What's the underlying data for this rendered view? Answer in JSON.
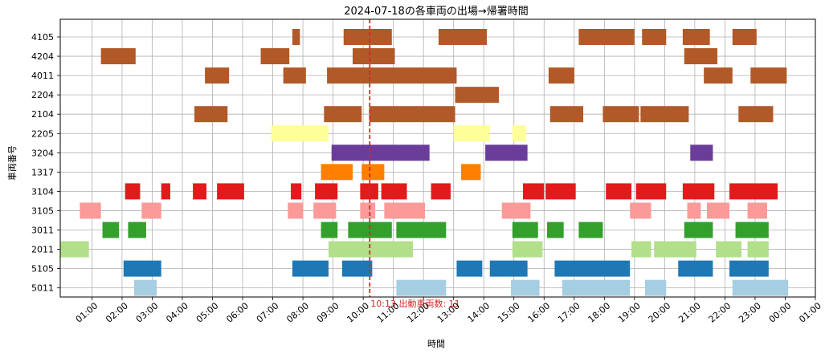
{
  "chart_data": {
    "type": "gantt",
    "title": "2024-07-18の各車両の出場→帰署時間",
    "xlabel": "時間",
    "ylabel": "車両番号",
    "x_ticks": [
      "01:00",
      "02:00",
      "03:00",
      "04:00",
      "05:00",
      "06:00",
      "07:00",
      "08:00",
      "09:00",
      "10:00",
      "11:00",
      "12:00",
      "13:00",
      "14:00",
      "15:00",
      "16:00",
      "17:00",
      "18:00",
      "19:00",
      "20:00",
      "21:00",
      "22:00",
      "23:00",
      "00:00",
      "01:00"
    ],
    "xlim_hours": [
      -0.05,
      25.0
    ],
    "grid": true,
    "reference_line": {
      "time": "10:13",
      "hour": 10.217,
      "label": "10:13 出動車両数: 11",
      "color": "#d62728"
    },
    "vehicles": [
      {
        "id": "4105",
        "color": "#b15928",
        "trips": [
          [
            7.65,
            7.9
          ],
          [
            9.35,
            10.95
          ],
          [
            12.5,
            14.1
          ],
          [
            17.15,
            19.0
          ],
          [
            19.25,
            20.05
          ],
          [
            20.6,
            21.5
          ],
          [
            22.25,
            23.05
          ]
        ]
      },
      {
        "id": "4204",
        "color": "#b15928",
        "trips": [
          [
            1.3,
            2.45
          ],
          [
            6.6,
            7.55
          ],
          [
            9.65,
            11.05
          ],
          [
            20.65,
            21.75
          ]
        ]
      },
      {
        "id": "4011",
        "color": "#b15928",
        "trips": [
          [
            4.75,
            5.55
          ],
          [
            7.35,
            8.1
          ],
          [
            8.8,
            13.1
          ],
          [
            16.15,
            17.0
          ],
          [
            21.3,
            22.25
          ],
          [
            22.85,
            24.05
          ]
        ]
      },
      {
        "id": "2204",
        "color": "#b15928",
        "trips": [
          [
            13.05,
            14.5
          ]
        ]
      },
      {
        "id": "2104",
        "color": "#b15928",
        "trips": [
          [
            4.4,
            5.5
          ],
          [
            8.7,
            9.95
          ],
          [
            10.2,
            13.05
          ],
          [
            16.2,
            17.3
          ],
          [
            17.95,
            19.15
          ],
          [
            19.2,
            20.8
          ],
          [
            22.45,
            23.6
          ]
        ]
      },
      {
        "id": "2205",
        "color": "#ffff99",
        "trips": [
          [
            6.95,
            8.85
          ],
          [
            13.0,
            14.2
          ],
          [
            14.95,
            15.4
          ]
        ]
      },
      {
        "id": "3204",
        "color": "#6a3d9a",
        "trips": [
          [
            8.95,
            12.2
          ],
          [
            14.05,
            15.45
          ],
          [
            20.85,
            21.6
          ]
        ]
      },
      {
        "id": "1317",
        "color": "#ff7f00",
        "trips": [
          [
            8.6,
            9.65
          ],
          [
            9.95,
            10.7
          ],
          [
            13.25,
            13.9
          ]
        ]
      },
      {
        "id": "3104",
        "color": "#e31a1c",
        "trips": [
          [
            2.1,
            2.6
          ],
          [
            3.3,
            3.6
          ],
          [
            4.35,
            4.8
          ],
          [
            5.15,
            6.05
          ],
          [
            7.6,
            7.95
          ],
          [
            8.4,
            9.15
          ],
          [
            9.9,
            10.5
          ],
          [
            10.6,
            11.45
          ],
          [
            12.25,
            12.9
          ],
          [
            15.3,
            16.0
          ],
          [
            16.05,
            17.05
          ],
          [
            18.05,
            18.9
          ],
          [
            19.05,
            20.05
          ],
          [
            20.6,
            21.65
          ],
          [
            22.15,
            23.75
          ]
        ]
      },
      {
        "id": "3105",
        "color": "#fb9a99",
        "trips": [
          [
            0.6,
            1.3
          ],
          [
            2.65,
            3.3
          ],
          [
            7.5,
            8.0
          ],
          [
            8.35,
            9.1
          ],
          [
            9.9,
            10.4
          ],
          [
            10.7,
            12.05
          ],
          [
            14.6,
            15.55
          ],
          [
            18.85,
            19.55
          ],
          [
            20.75,
            21.2
          ],
          [
            21.4,
            22.15
          ],
          [
            22.75,
            23.4
          ]
        ]
      },
      {
        "id": "3011",
        "color": "#33a02c",
        "trips": [
          [
            1.35,
            1.9
          ],
          [
            2.2,
            2.8
          ],
          [
            8.6,
            9.15
          ],
          [
            9.5,
            10.95
          ],
          [
            11.1,
            12.75
          ],
          [
            14.95,
            15.8
          ],
          [
            16.1,
            16.65
          ],
          [
            17.15,
            17.95
          ],
          [
            20.65,
            21.6
          ],
          [
            22.35,
            23.45
          ]
        ]
      },
      {
        "id": "2011",
        "color": "#b2df8a",
        "trips": [
          [
            -0.05,
            0.9
          ],
          [
            8.85,
            11.65
          ],
          [
            14.95,
            15.95
          ],
          [
            18.9,
            19.55
          ],
          [
            19.65,
            21.05
          ],
          [
            21.7,
            22.55
          ],
          [
            22.75,
            23.45
          ]
        ]
      },
      {
        "id": "5105",
        "color": "#1f78b4",
        "trips": [
          [
            2.05,
            3.3
          ],
          [
            7.65,
            8.85
          ],
          [
            9.3,
            10.3
          ],
          [
            13.1,
            13.95
          ],
          [
            14.2,
            15.45
          ],
          [
            16.35,
            18.85
          ],
          [
            20.45,
            21.6
          ],
          [
            22.15,
            23.45
          ]
        ]
      },
      {
        "id": "5011",
        "color": "#a6cee3",
        "trips": [
          [
            2.4,
            3.15
          ],
          [
            11.1,
            12.75
          ],
          [
            14.9,
            15.85
          ],
          [
            16.6,
            18.85
          ],
          [
            19.35,
            20.05
          ],
          [
            22.25,
            24.1
          ]
        ]
      }
    ]
  }
}
